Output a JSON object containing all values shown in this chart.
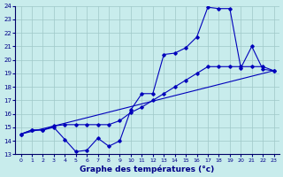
{
  "xlabel": "Graphe des températures (°c)",
  "x_ticks": [
    0,
    1,
    2,
    3,
    4,
    5,
    6,
    7,
    8,
    9,
    10,
    11,
    12,
    13,
    14,
    15,
    16,
    17,
    18,
    19,
    20,
    21,
    22,
    23
  ],
  "ylim": [
    13,
    24
  ],
  "yticks": [
    13,
    14,
    15,
    16,
    17,
    18,
    19,
    20,
    21,
    22,
    23,
    24
  ],
  "bg_color": "#c8ecec",
  "grid_color": "#9fc8c8",
  "line_color": "#0000bb",
  "line1_x": [
    0,
    1,
    2,
    3,
    4,
    5,
    6,
    7,
    8,
    9,
    10,
    11,
    12,
    13,
    14,
    15,
    16,
    17,
    18,
    19,
    20,
    21,
    22,
    23
  ],
  "line1_y": [
    14.5,
    14.8,
    14.8,
    15.0,
    14.1,
    13.2,
    13.3,
    14.2,
    13.6,
    14.0,
    16.3,
    17.5,
    17.5,
    20.4,
    20.5,
    20.9,
    21.7,
    23.9,
    23.8,
    23.8,
    19.4,
    21.0,
    19.3,
    19.2
  ],
  "line2_x": [
    0,
    1,
    2,
    3,
    4,
    5,
    6,
    7,
    8,
    9,
    10,
    11,
    12,
    13,
    14,
    15,
    16,
    17,
    18,
    19,
    20,
    21,
    22,
    23
  ],
  "line2_y": [
    14.5,
    14.8,
    14.8,
    15.1,
    15.2,
    15.2,
    15.2,
    15.2,
    15.2,
    15.5,
    16.1,
    16.5,
    17.0,
    17.5,
    18.0,
    18.5,
    19.0,
    19.5,
    19.5,
    19.5,
    19.5,
    19.5,
    19.5,
    19.2
  ],
  "line3_x": [
    0,
    3,
    23
  ],
  "line3_y": [
    14.5,
    15.1,
    19.2
  ]
}
